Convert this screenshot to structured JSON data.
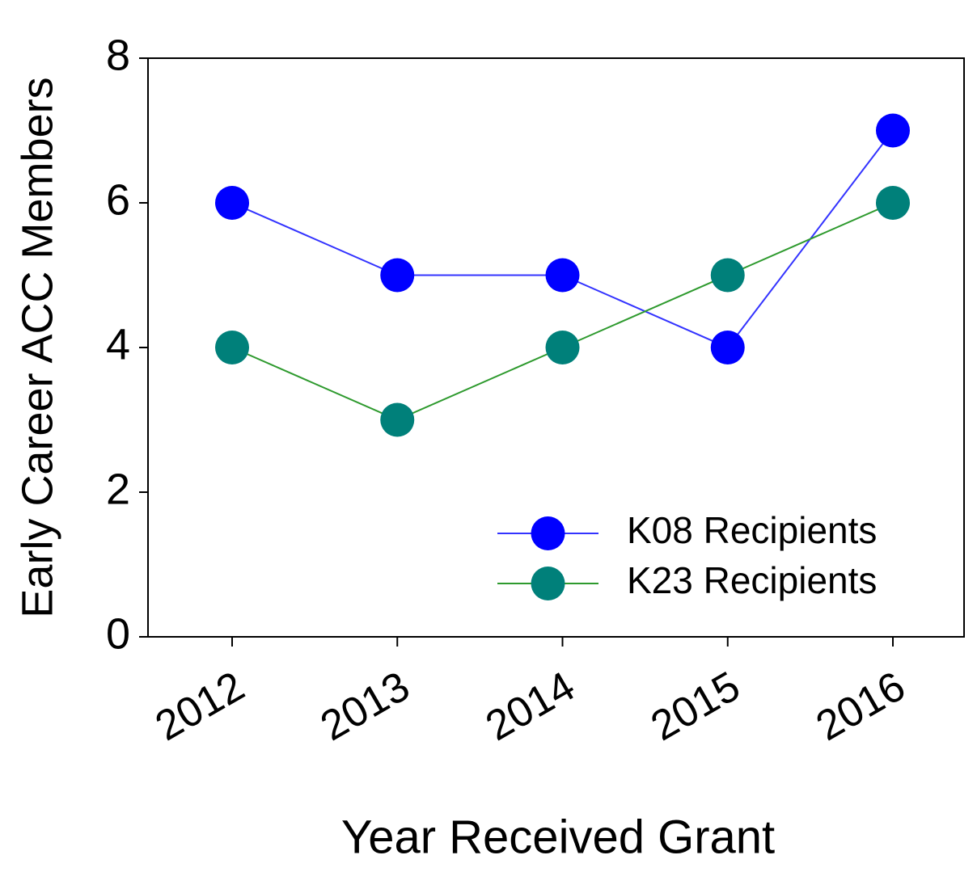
{
  "chart_data": {
    "type": "line",
    "x_label": "Year Received Grant",
    "y_label": "Early Career ACC Members",
    "categories": [
      "2012",
      "2013",
      "2014",
      "2015",
      "2016"
    ],
    "series": [
      {
        "name": "K08 Recipients",
        "color": "#0000ff",
        "line_color": "#3333ff",
        "values": [
          6,
          5,
          5,
          4,
          7
        ]
      },
      {
        "name": "K23 Recipients",
        "color": "#00807a",
        "line_color": "#2e9a2e",
        "values": [
          4,
          3,
          4,
          5,
          6
        ]
      }
    ],
    "ylim": [
      0,
      8
    ],
    "yticks": [
      0,
      2,
      4,
      6,
      8
    ],
    "legend": "lower right",
    "grid": false
  }
}
